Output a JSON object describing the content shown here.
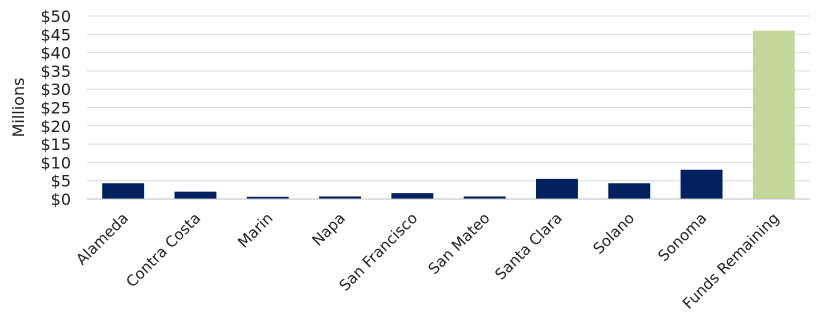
{
  "chart_data": {
    "type": "bar",
    "categories": [
      "Alameda",
      "Contra Costa",
      "Marin",
      "Napa",
      "San Francisco",
      "San Mateo",
      "Santa Clara",
      "Solano",
      "Sonoma",
      "Funds Remaining"
    ],
    "values": [
      4.3,
      2.0,
      0.6,
      0.7,
      1.6,
      0.7,
      5.5,
      4.3,
      8.0,
      46.0
    ],
    "bar_colors": [
      "#002060",
      "#002060",
      "#002060",
      "#002060",
      "#002060",
      "#002060",
      "#002060",
      "#002060",
      "#002060",
      "#c4d79b"
    ],
    "ylabel": "Millions",
    "ylim": [
      0,
      50
    ],
    "yticks": [
      0,
      5,
      10,
      15,
      20,
      25,
      30,
      35,
      40,
      45,
      50
    ],
    "ytick_labels": [
      "$0",
      "$5",
      "$10",
      "$15",
      "$20",
      "$25",
      "$30",
      "$35",
      "$40",
      "$45",
      "$50"
    ],
    "grid": true,
    "legend": "none"
  }
}
